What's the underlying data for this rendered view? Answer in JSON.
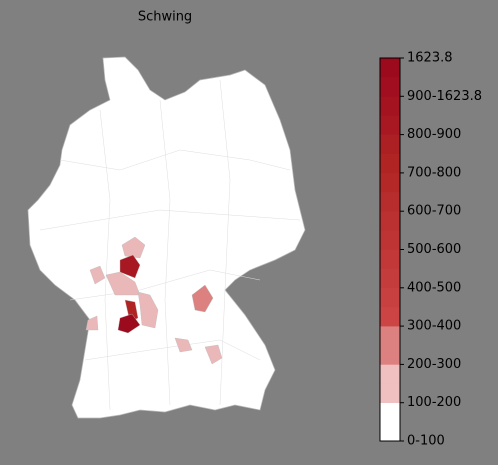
{
  "title": "Schwing",
  "colorbar": {
    "labels": [
      "1623.8",
      "900-1623.8",
      "800-900",
      "700-800",
      "600-700",
      "500-600",
      "400-500",
      "300-400",
      "200-300",
      "100-200",
      "0-100"
    ],
    "colors": [
      "#ffffff",
      "#ffffff",
      "#f0c0c0",
      "#f0c0c0",
      "#dc8080",
      "#dc8080",
      "#cc4444",
      "#c94040",
      "#c53c3c",
      "#c23838",
      "#be3434",
      "#bb3030",
      "#b72c2c",
      "#b42828",
      "#b02424",
      "#ac2024",
      "#a81822",
      "#a41420",
      "#a00e20",
      "#9c0a1e"
    ]
  }
}
